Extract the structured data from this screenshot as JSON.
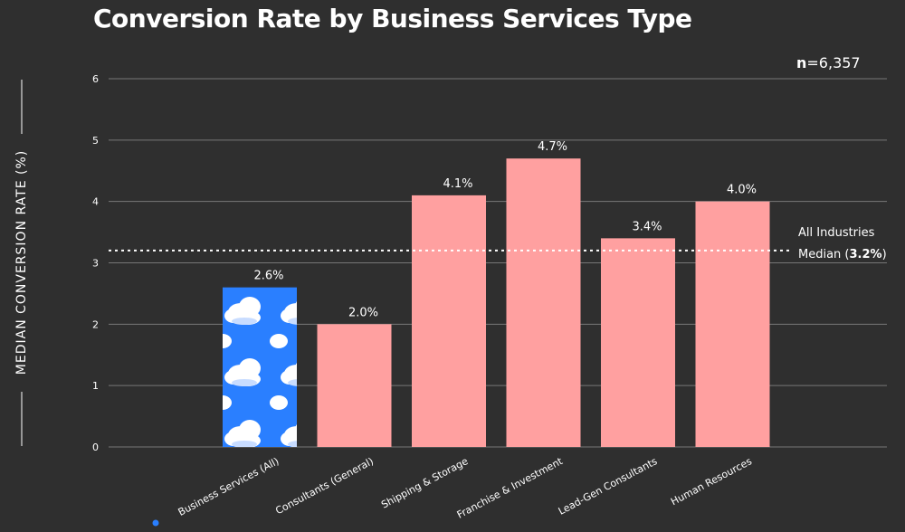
{
  "chart_data": {
    "type": "bar",
    "title": "Conversion Rate by Business Services Type",
    "ylabel": "MEDIAN CONVERSION RATE (%)",
    "xlabel": "",
    "ylim": [
      0,
      6
    ],
    "yticks": [
      0,
      1,
      2,
      3,
      4,
      5,
      6
    ],
    "grid": true,
    "sample_size_label": "n",
    "sample_size_value": "=6,357",
    "categories": [
      "Business Services (All)",
      "Consultants (General)",
      "Shipping & Storage",
      "Franchise & Investment",
      "Lead-Gen Consultants",
      "Human Resources"
    ],
    "values": [
      2.6,
      2.0,
      4.1,
      4.7,
      3.4,
      4.0
    ],
    "data_labels": [
      "2.6%",
      "2.0%",
      "4.1%",
      "4.7%",
      "3.4%",
      "4.0%"
    ],
    "reference_line": {
      "value": 3.2,
      "label_line1": "All Industries",
      "label_line2_prefix": "Median (",
      "label_line2_value": "3.2%",
      "label_line2_suffix": ")"
    },
    "colors": {
      "bar": "#ffa0a0",
      "highlight_bar": "#2a7fff",
      "grid": "#777777",
      "text": "#ffffff",
      "background": "#2f2f2f",
      "legend_dot": "#2a7fff"
    },
    "highlight_icon": "cloud-icon"
  }
}
